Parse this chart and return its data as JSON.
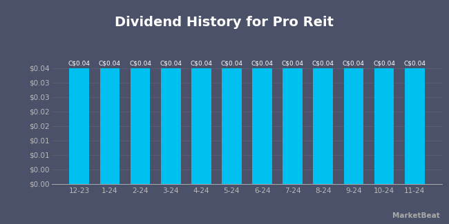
{
  "title": "Dividend History for Pro Reit",
  "categories": [
    "12-23",
    "1-24",
    "2-24",
    "3-24",
    "4-24",
    "5-24",
    "6-24",
    "7-24",
    "8-24",
    "9-24",
    "10-24",
    "11-24"
  ],
  "values": [
    0.04,
    0.04,
    0.04,
    0.04,
    0.04,
    0.04,
    0.04,
    0.04,
    0.04,
    0.04,
    0.04,
    0.04
  ],
  "bar_color": "#00c0f0",
  "background_color": "#4a5168",
  "plot_bg_color": "#4a5168",
  "title_color": "#ffffff",
  "tick_color": "#bbbbbb",
  "grid_color": "#5a6070",
  "bar_label": "C$0.04",
  "bar_label_color": "#ffffff",
  "ylim_max": 0.048,
  "ytick_vals": [
    0.0,
    0.005,
    0.01,
    0.015,
    0.02,
    0.025,
    0.03,
    0.035,
    0.04
  ],
  "ytick_labels": [
    "$0.00",
    "$0.00",
    "$0.01",
    "$0.01",
    "$0.02",
    "$0.02",
    "$0.03",
    "$0.03",
    "$0.04"
  ],
  "title_fontsize": 14,
  "label_fontsize": 7.5,
  "bar_label_fontsize": 6.5
}
